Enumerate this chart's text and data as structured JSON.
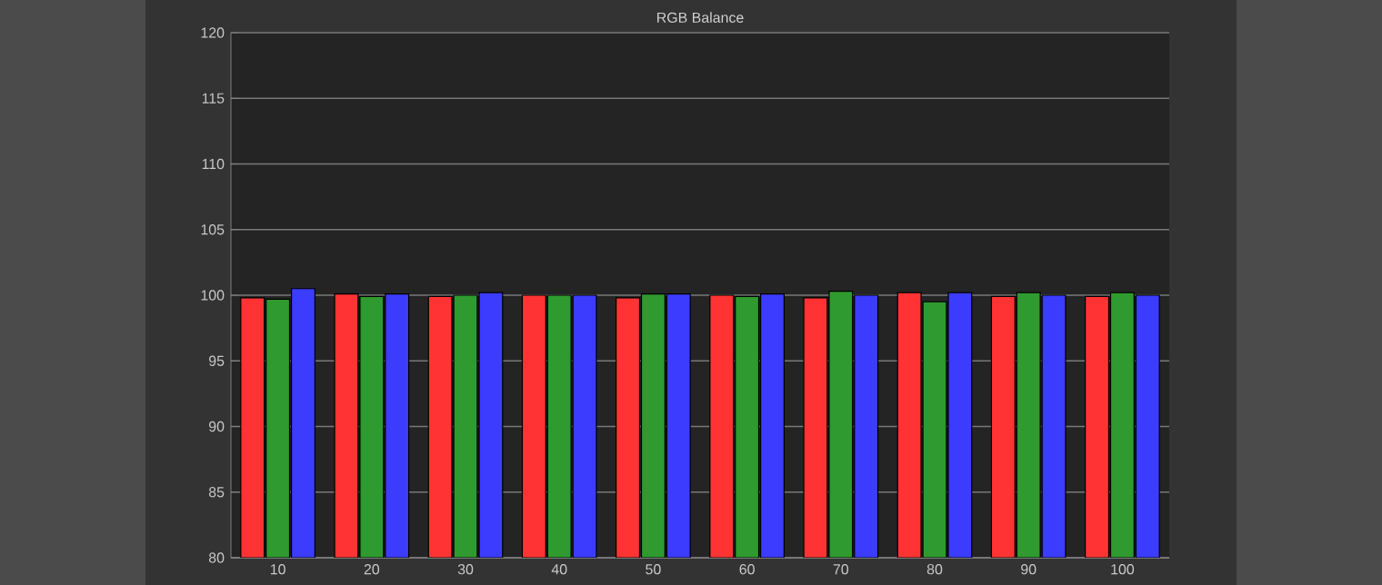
{
  "chart_data": {
    "type": "bar",
    "title": "RGB Balance",
    "categories": [
      "10",
      "20",
      "30",
      "40",
      "50",
      "60",
      "70",
      "80",
      "90",
      "100"
    ],
    "series": [
      {
        "color": "#ff3333",
        "values": [
          99.8,
          100.1,
          99.9,
          100.0,
          99.8,
          100.0,
          99.8,
          100.2,
          99.9,
          99.9
        ]
      },
      {
        "color": "#2f9a2f",
        "values": [
          99.7,
          99.9,
          100.0,
          100.0,
          100.1,
          99.9,
          100.3,
          99.5,
          100.2,
          100.2
        ]
      },
      {
        "color": "#3c3cff",
        "values": [
          100.5,
          100.1,
          100.2,
          100.0,
          100.1,
          100.1,
          100.0,
          100.2,
          100.0,
          100.0
        ]
      }
    ],
    "ylim": [
      80,
      120
    ],
    "yticks": [
      80,
      85,
      90,
      95,
      100,
      105,
      110,
      115,
      120
    ],
    "grid": "y"
  }
}
